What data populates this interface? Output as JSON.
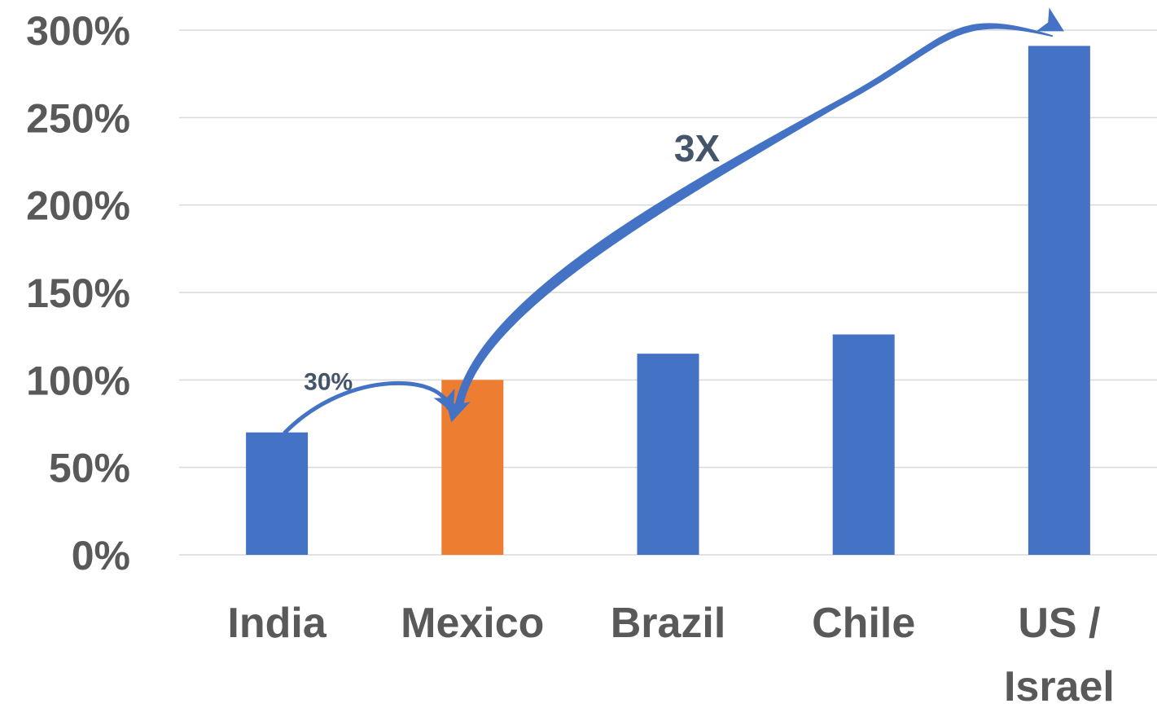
{
  "chart_data": {
    "type": "bar",
    "categories": [
      "India",
      "Mexico",
      "Brazil",
      "Chile",
      "US / Israel"
    ],
    "category_lines": [
      [
        "India"
      ],
      [
        "Mexico"
      ],
      [
        "Brazil"
      ],
      [
        "Chile"
      ],
      [
        "US /",
        "Israel"
      ]
    ],
    "values": [
      70,
      100,
      115,
      126,
      291
    ],
    "bar_colors": [
      "#4472C4",
      "#ED7D31",
      "#4472C4",
      "#4472C4",
      "#4472C4"
    ],
    "yticks": [
      0,
      50,
      100,
      150,
      200,
      250,
      300
    ],
    "ytick_labels": [
      "0%",
      "50%",
      "100%",
      "150%",
      "200%",
      "250%",
      "300%"
    ],
    "ylim": [
      0,
      300
    ],
    "grid": true,
    "title": "",
    "xlabel": "",
    "ylabel": "",
    "annotations": [
      {
        "text": "30%",
        "from_category": "India",
        "to_category": "Mexico",
        "arrow_color": "#4472C4"
      },
      {
        "text": "3X",
        "from_category": "Mexico",
        "to_category": "US / Israel",
        "arrow_color": "#4472C4"
      }
    ],
    "colors": {
      "bar_default": "#4472C4",
      "bar_highlight": "#ED7D31",
      "grid": "#D9D9D9",
      "label": "#595959",
      "annotation": "#44546A"
    }
  }
}
